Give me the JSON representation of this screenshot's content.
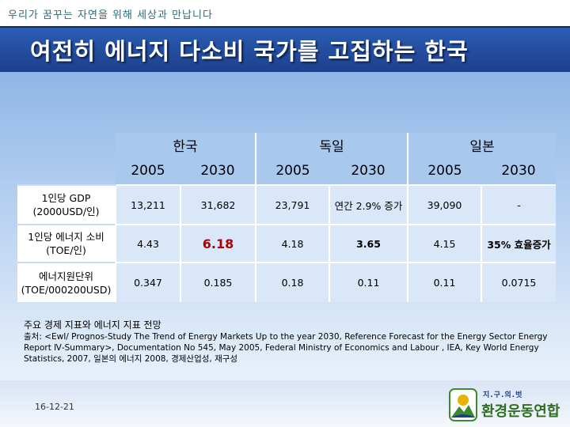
{
  "slide": {
    "slogan": "우리가 꿈꾸는 자연을 위해 세상과 만납니다",
    "title": "여전히 에너지 다소비 국가를 고집하는 한국",
    "date": "16-12-21"
  },
  "table": {
    "groups": [
      "한국",
      "독일",
      "일본"
    ],
    "years": [
      "2005",
      "2030",
      "2005",
      "2030",
      "2005",
      "2030"
    ],
    "rows": [
      {
        "label_line1": "1인당 GDP",
        "label_line2": "(2000USD/인)",
        "values": [
          "13,211",
          "31,682",
          "23,791",
          "연간 2.9% 증가",
          "39,090",
          "-"
        ]
      },
      {
        "label_line1": "1인당 에너지 소비",
        "label_line2": "(TOE/인)",
        "values": [
          "4.43",
          "6.18",
          "4.18",
          "3.65",
          "4.15",
          "35% 효율증가"
        ]
      },
      {
        "label_line1": "에너지원단위",
        "label_line2": "(TOE/000200USD)",
        "values": [
          "0.347",
          "0.185",
          "0.18",
          "0.11",
          "0.11",
          "0.0715"
        ]
      }
    ]
  },
  "notes": {
    "title": "주요 경제 지표와 에너지 지표 전망",
    "source": "출처: <EwI/ Prognos-Study The Trend of Energy Markets Up to the year 2030, Reference Forecast for the Energy Sector Energy Report Ⅳ-Summary>, Documentation No 545, May 2005, Federal Ministry of Economics and Labour , IEA, Key World Energy Statistics, 2007, 일본의 에너지 2008, 경제산업성, 재구성"
  },
  "logo": {
    "text_top": "지.구.의.벗",
    "text_main": "환경운동연합",
    "colors": {
      "green": "#3a8a2e",
      "blue": "#1d3f8a"
    }
  },
  "colors": {
    "title_bar": "#2b5db4",
    "header_cell": "#a9c8ee",
    "data_cell": "#d9e7f8",
    "highlight_text": "#b00000"
  }
}
